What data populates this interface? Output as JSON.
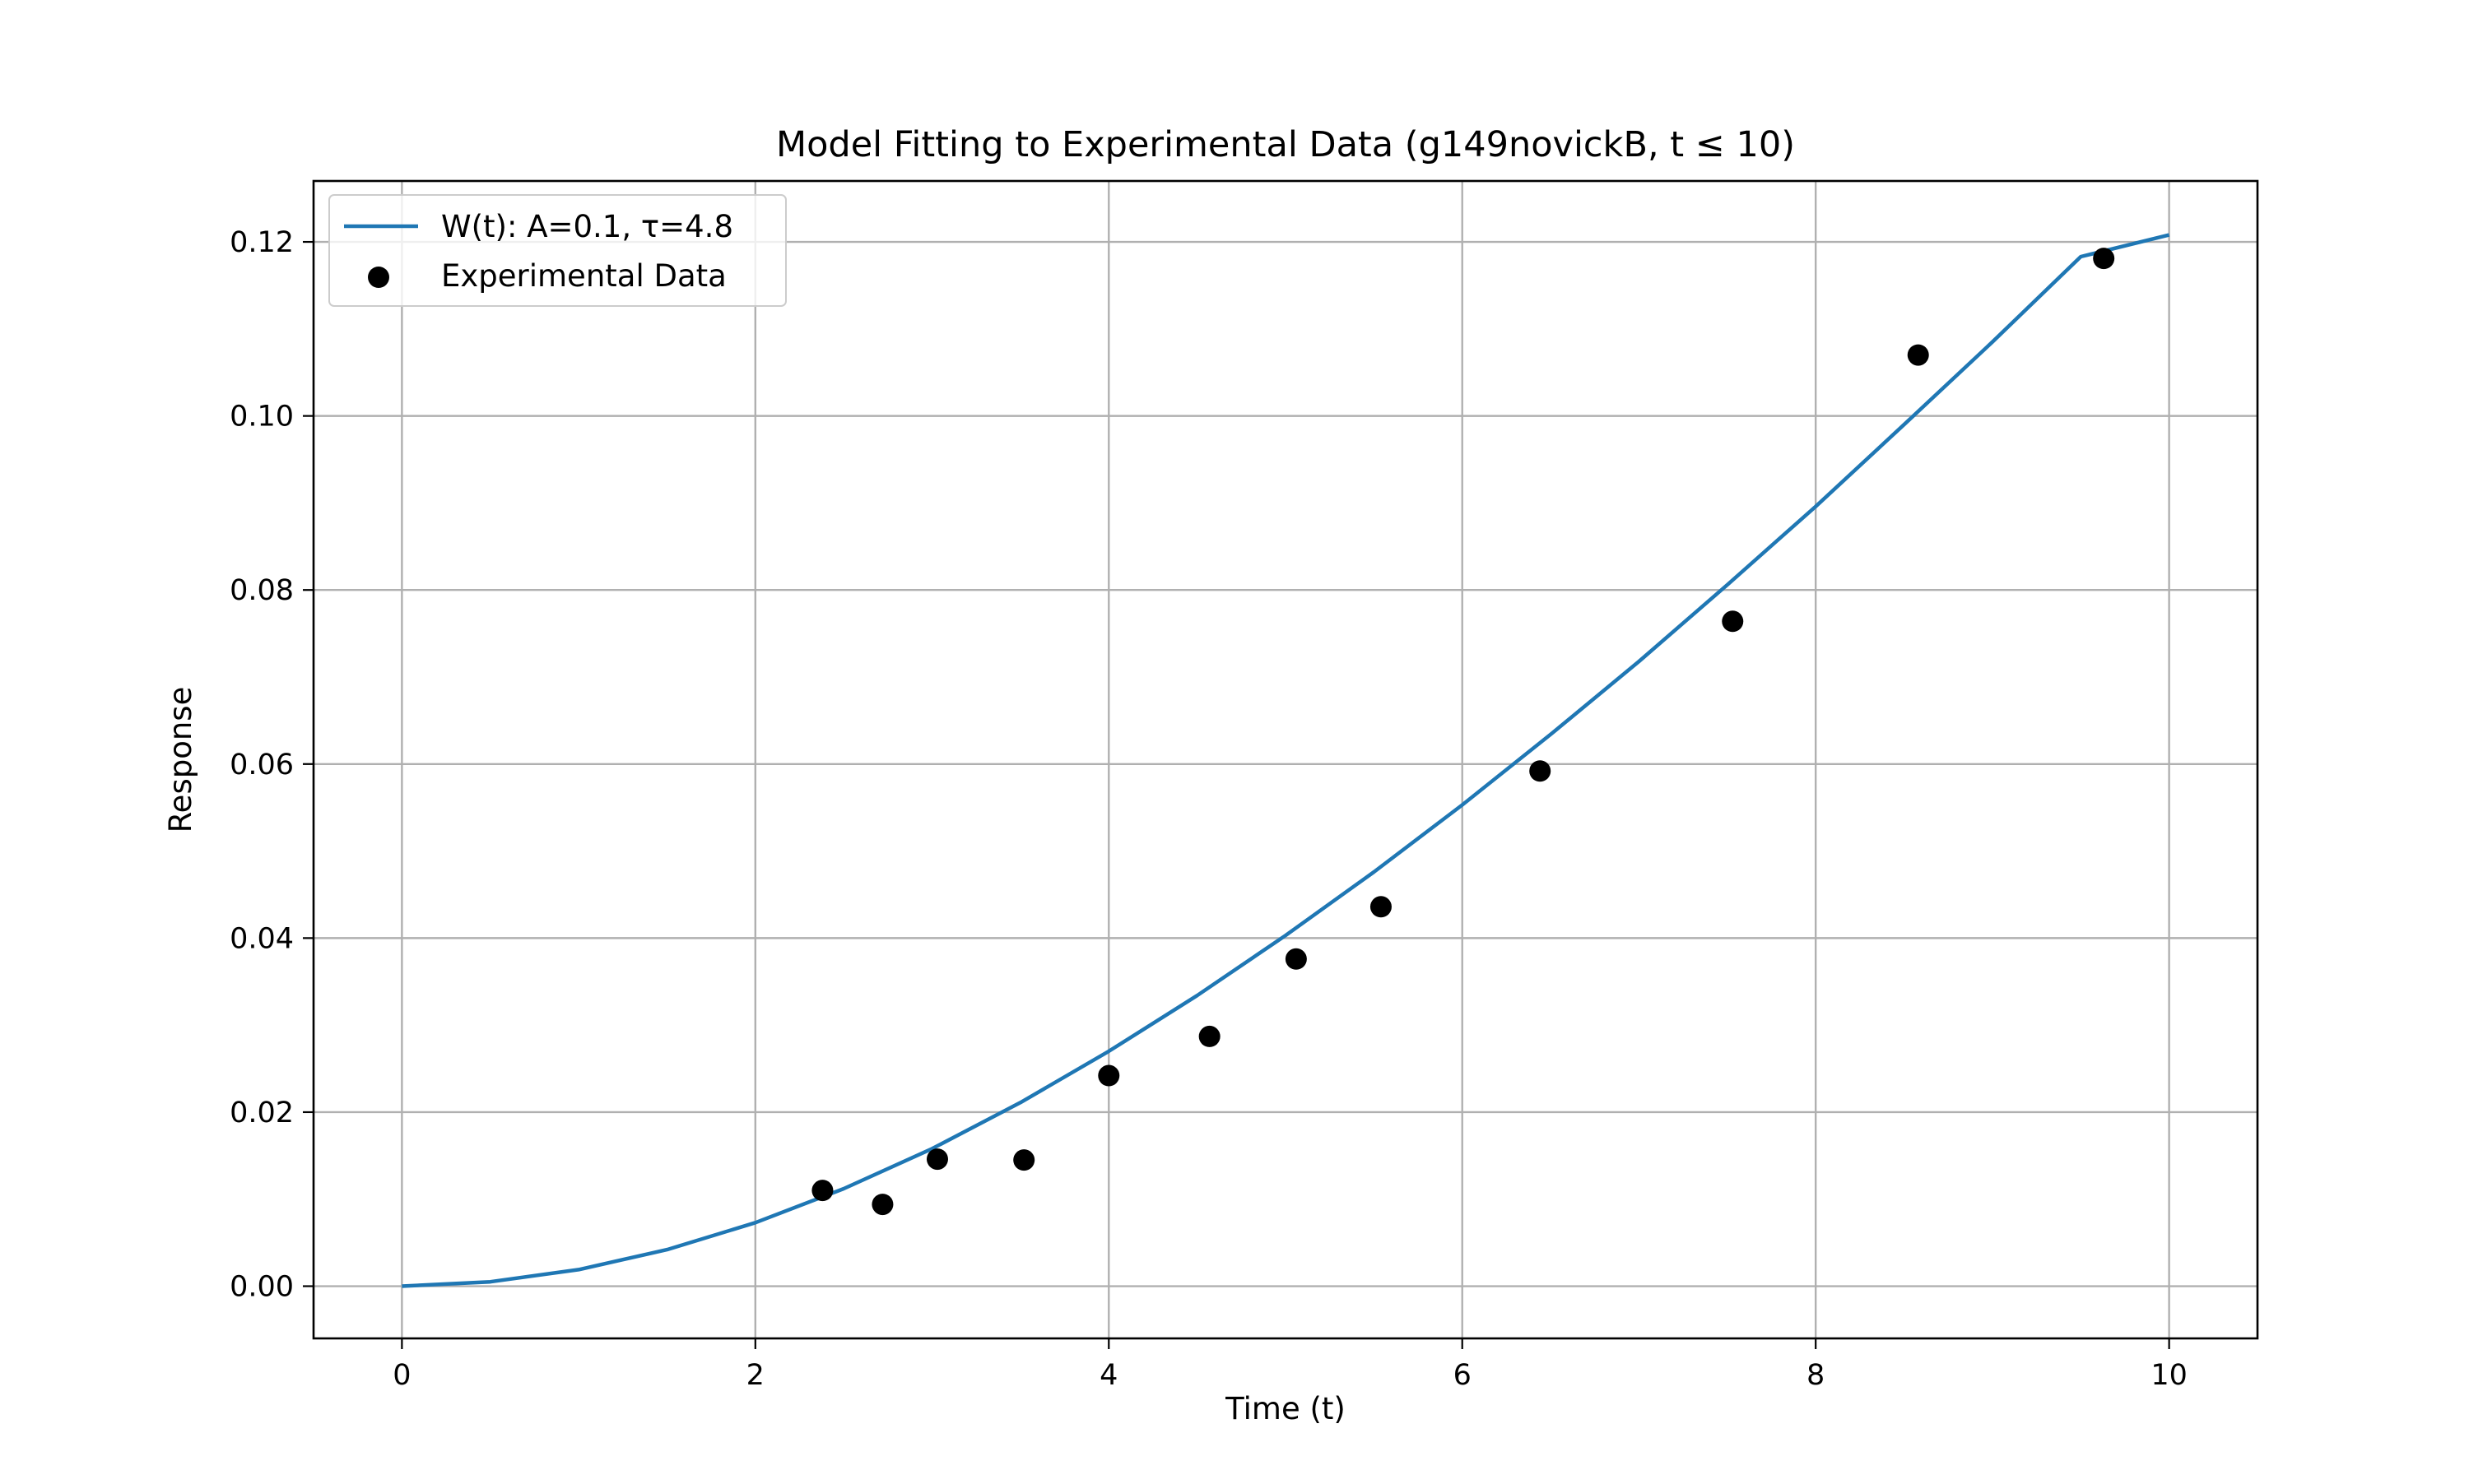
{
  "chart_data": {
    "type": "line",
    "title": "Model Fitting to Experimental Data (g149novickB, t ≤ 10)",
    "xlabel": "Time (t)",
    "ylabel": "Response",
    "xlim": [
      -0.5,
      10.5
    ],
    "ylim": [
      -0.006,
      0.127
    ],
    "xticks": [
      0,
      2,
      4,
      6,
      8,
      10
    ],
    "xtick_labels": [
      "0",
      "2",
      "4",
      "6",
      "8",
      "10"
    ],
    "yticks": [
      0,
      0.02,
      0.04,
      0.06,
      0.08,
      0.1,
      0.12
    ],
    "ytick_labels": [
      "0.00",
      "0.02",
      "0.04",
      "0.06",
      "0.08",
      "0.10",
      "0.12"
    ],
    "grid": true,
    "legend_position": "top-left",
    "series": [
      {
        "name": "W(t): A=0.1, τ=4.8",
        "kind": "line",
        "color": "#1f77b4",
        "x": [
          0,
          0.5,
          1,
          1.5,
          2,
          2.5,
          3,
          3.5,
          4,
          4.5,
          5,
          5.5,
          6,
          6.5,
          7,
          7.5,
          8,
          8.5,
          9,
          9.5,
          10
        ],
        "y": [
          0,
          0.0005,
          0.0019,
          0.0042,
          0.0073,
          0.0112,
          0.0158,
          0.0211,
          0.027,
          0.0334,
          0.0403,
          0.0476,
          0.0553,
          0.0634,
          0.0718,
          0.0806,
          0.0896,
          0.099,
          0.1085,
          0.1183,
          0.1208
        ]
      },
      {
        "name": "Experimental Data",
        "kind": "scatter",
        "color": "#000000",
        "x": [
          2.38,
          2.72,
          3.03,
          3.52,
          4.0,
          4.57,
          5.06,
          5.54,
          6.44,
          7.53,
          8.58,
          9.63
        ],
        "y": [
          0.011,
          0.0094,
          0.0146,
          0.0145,
          0.0242,
          0.0287,
          0.0376,
          0.0436,
          0.0592,
          0.0764,
          0.107,
          0.1181
        ]
      }
    ]
  }
}
